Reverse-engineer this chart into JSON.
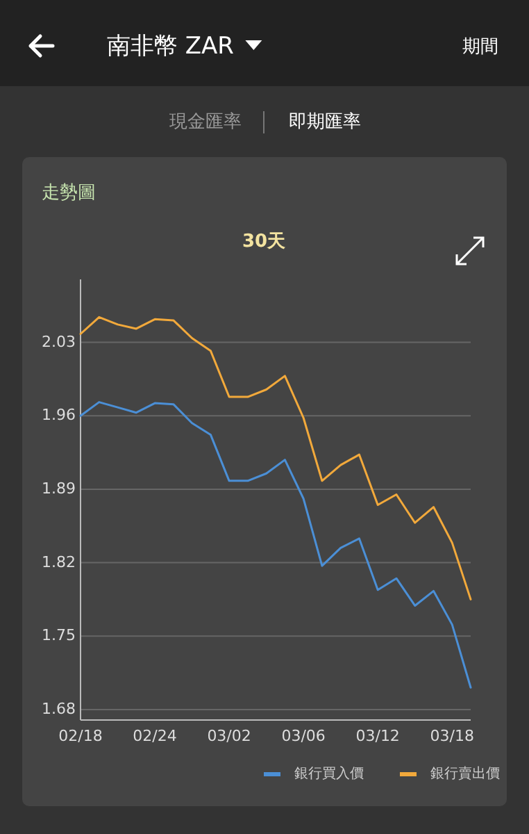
{
  "chart_data": {
    "type": "line",
    "title": "走勢圖",
    "subtitle": "30天",
    "annotations": [
      "南非幣 ZAR",
      "期間",
      "現金匯率",
      "即期匯率"
    ],
    "categories": [
      "02/18",
      null,
      null,
      null,
      "02/24",
      null,
      null,
      null,
      "03/02",
      null,
      null,
      null,
      "03/06",
      null,
      null,
      null,
      "03/12",
      null,
      null,
      null,
      "03/18",
      null
    ],
    "series": [
      {
        "name": "銀行買入價",
        "color": "#4b8fd6",
        "values": [
          1.96,
          1.973,
          1.968,
          1.963,
          1.972,
          1.971,
          1.953,
          1.942,
          1.898,
          1.898,
          1.905,
          1.918,
          1.881,
          1.817,
          1.834,
          1.843,
          1.794,
          1.805,
          1.779,
          1.793,
          1.761,
          1.701
        ]
      },
      {
        "name": "銀行賣出價",
        "color": "#f2a93b",
        "values": [
          2.038,
          2.054,
          2.047,
          2.043,
          2.052,
          2.051,
          2.034,
          2.022,
          1.978,
          1.978,
          1.985,
          1.998,
          1.958,
          1.898,
          1.913,
          1.923,
          1.875,
          1.885,
          1.858,
          1.873,
          1.839,
          1.785
        ]
      }
    ],
    "ylim": [
      1.67,
      2.09
    ],
    "yticks": [
      1.68,
      1.75,
      1.82,
      1.89,
      1.96,
      2.03
    ],
    "grid": "y",
    "legend": "bottom right"
  }
}
